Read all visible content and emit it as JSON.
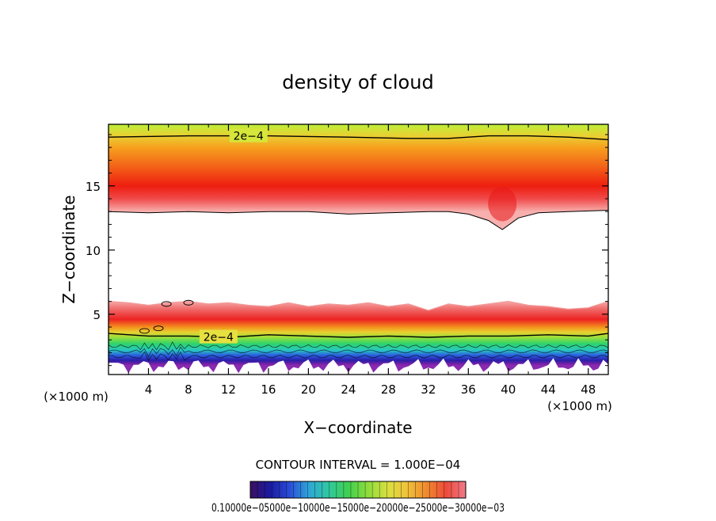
{
  "chart_data": {
    "type": "heatmap",
    "title": "density of cloud",
    "xlabel": "X−coordinate",
    "ylabel": "Z−coordinate",
    "x_unit_left": "(×1000 m)",
    "x_unit_right": "(×1000 m)",
    "xlim": [
      0,
      50
    ],
    "ylim": [
      0.3,
      19.8
    ],
    "xticks": [
      4,
      8,
      12,
      16,
      20,
      24,
      28,
      32,
      36,
      40,
      44,
      48
    ],
    "yticks": [
      5,
      10,
      15
    ],
    "contour_interval_text": "CONTOUR INTERVAL = 1.000E−04",
    "colorbar_text": "0.10000e−05000e−10000e−15000e−20000e−25000e−30000e−03",
    "colorbar_colors": [
      "#3b1060",
      "#1a1aa0",
      "#2a4cd8",
      "#2fa6d8",
      "#30c8a0",
      "#40d050",
      "#8edc3c",
      "#d8e040",
      "#f0c23a",
      "#f08a2e",
      "#ee4a3a",
      "#f07a8a"
    ],
    "contours": [
      {
        "label": "2e−4",
        "x": [
          0,
          8,
          16,
          24,
          30,
          34,
          38,
          42,
          46,
          50
        ],
        "z": [
          18.8,
          18.9,
          18.9,
          18.8,
          18.7,
          18.7,
          18.9,
          18.9,
          18.8,
          18.6
        ]
      },
      {
        "label": "2e−4",
        "x": [
          0,
          4,
          8,
          12,
          16,
          20,
          24,
          28,
          32,
          36,
          40,
          44,
          48,
          50
        ],
        "z": [
          3.5,
          3.3,
          3.3,
          3.2,
          3.4,
          3.3,
          3.2,
          3.3,
          3.2,
          3.3,
          3.3,
          3.4,
          3.3,
          3.5
        ]
      }
    ],
    "upper_layer": {
      "top_z": 19.8,
      "bottom_x": [
        0,
        4,
        8,
        12,
        16,
        20,
        24,
        28,
        32,
        34,
        36,
        38,
        39.4,
        41,
        43,
        46,
        50
      ],
      "bottom_z": [
        13.0,
        12.9,
        13.0,
        12.9,
        13.0,
        13.0,
        12.8,
        12.9,
        13.0,
        13.0,
        12.8,
        12.3,
        11.6,
        12.5,
        12.9,
        13.0,
        13.1
      ],
      "peak_z": 15.0
    },
    "lower_layer": {
      "top_x": [
        0,
        2,
        4,
        6,
        8,
        10,
        12,
        14,
        16,
        18,
        20,
        22,
        24,
        26,
        28,
        30,
        32,
        34,
        36,
        38,
        40,
        42,
        44,
        46,
        48,
        50
      ],
      "top_z": [
        6.0,
        5.9,
        5.7,
        5.9,
        6.0,
        5.8,
        5.9,
        5.7,
        5.6,
        5.9,
        5.6,
        5.8,
        5.7,
        5.9,
        5.6,
        5.8,
        5.3,
        5.8,
        5.6,
        5.8,
        6.0,
        5.7,
        5.6,
        5.4,
        5.5,
        6.0
      ],
      "bottom_z": 1.0,
      "peak_z": 4.6
    }
  }
}
